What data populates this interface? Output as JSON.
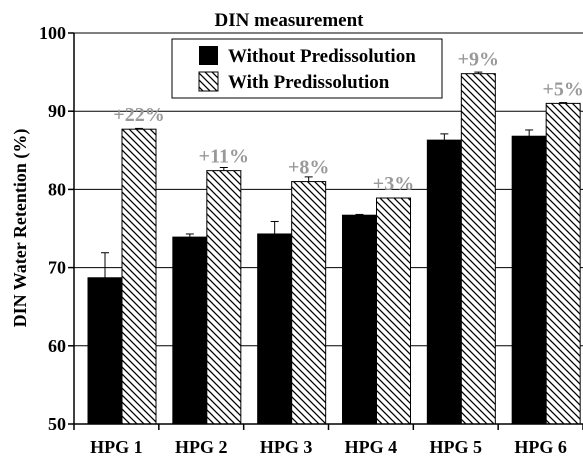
{
  "chart_data": {
    "type": "bar",
    "title": "DIN measurement",
    "ylabel": "DIN Water Retention (%)",
    "xlabel": "",
    "ylim": [
      50,
      100
    ],
    "yticks": [
      50,
      60,
      70,
      80,
      90,
      100
    ],
    "grid": true,
    "legend_position": "top-center",
    "categories": [
      "HPG 1",
      "HPG 2",
      "HPG 3",
      "HPG 4",
      "HPG 5",
      "HPG 6"
    ],
    "series": [
      {
        "name": "Without Predissolution",
        "fill": "solid",
        "color": "#000000",
        "values": [
          68.7,
          73.9,
          74.3,
          76.7,
          86.3,
          86.8
        ],
        "errors": [
          3.2,
          0.4,
          1.6,
          0.1,
          0.8,
          0.8
        ]
      },
      {
        "name": "With Predissolution",
        "fill": "hatched",
        "color": "#000000",
        "values": [
          87.7,
          82.4,
          81.0,
          78.9,
          94.8,
          91.0
        ],
        "errors": [
          0.1,
          0.4,
          0.6,
          0.0,
          0.2,
          0.1
        ]
      }
    ],
    "annotations": [
      "+22%",
      "+11%",
      "+8%",
      "+3%",
      "+9%",
      "+5%"
    ],
    "annotation_color": "#999999"
  }
}
